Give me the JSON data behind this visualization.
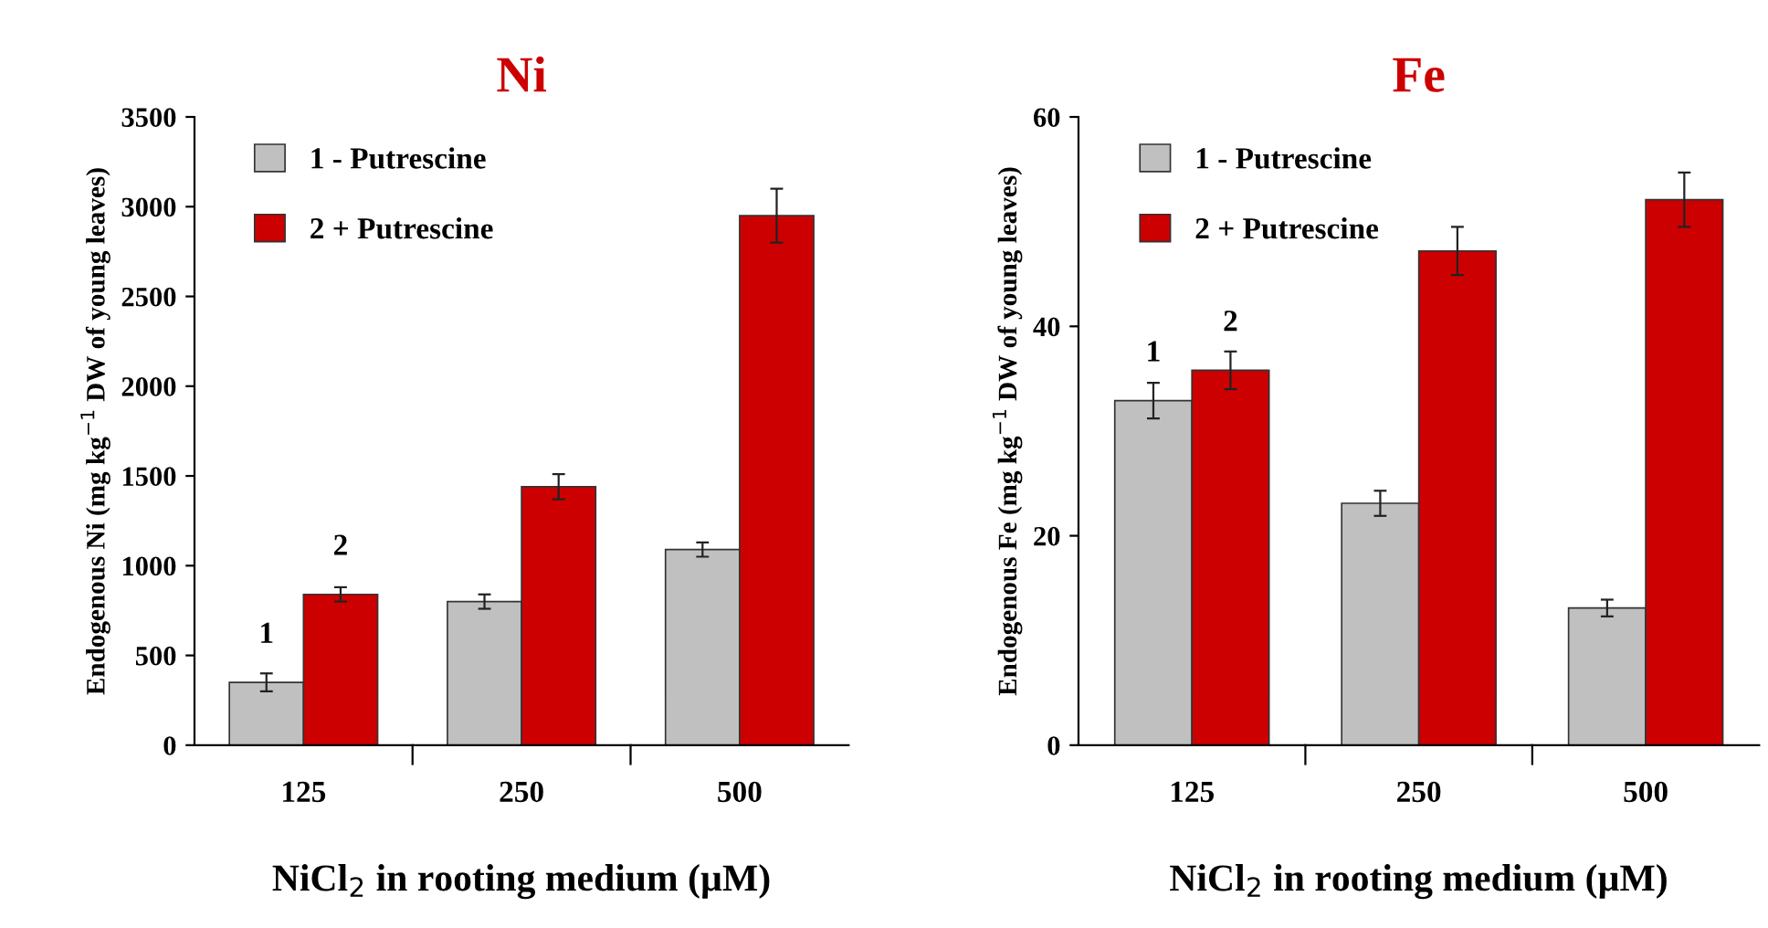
{
  "chart_data": [
    {
      "type": "bar",
      "title": "Ni",
      "xlabel": "NiCl$_{2}$ in rooting medium (µM)",
      "ylabel": "Endogenous Ni (mg kg$^{−1}$ DW of young leaves)",
      "categories": [
        "125",
        "250",
        "500"
      ],
      "series": [
        {
          "name": "1 - Putrescine",
          "color": "#c0c0c0",
          "values": [
            350,
            800,
            1090
          ],
          "errors": [
            50,
            40,
            40
          ]
        },
        {
          "name": "2 + Putrescine",
          "color": "#cc0000",
          "values": [
            840,
            1440,
            2950
          ],
          "errors": [
            40,
            70,
            150
          ]
        }
      ],
      "ylim": [
        0,
        3500
      ],
      "yticks": [
        0,
        500,
        1000,
        1500,
        2000,
        2500,
        3000,
        3500
      ],
      "grid": false,
      "legend": "top left",
      "annotations": [
        {
          "text": "1",
          "x": "125",
          "y": 350
        },
        {
          "text": "2",
          "x": "125",
          "y": 840
        }
      ]
    },
    {
      "type": "bar",
      "title": "Fe",
      "xlabel": "NiCl$_{2}$ in rooting medium (µM)",
      "ylabel": "Endogenous Fe (mg kg$^{−1}$ DW of young leaves)",
      "categories": [
        "125",
        "250",
        "500"
      ],
      "series": [
        {
          "name": "1 - Putrescine",
          "color": "#c0c0c0",
          "values": [
            32.9,
            23.1,
            13.1
          ],
          "errors": [
            1.7,
            1.2,
            0.8
          ]
        },
        {
          "name": "2 + Putrescine",
          "color": "#cc0000",
          "values": [
            35.8,
            47.2,
            52.1
          ],
          "errors": [
            1.8,
            2.3,
            2.6
          ]
        }
      ],
      "ylim": [
        0,
        60
      ],
      "yticks": [
        0,
        20,
        40,
        60
      ],
      "grid": false,
      "legend": "top left",
      "annotations": [
        {
          "text": "1",
          "x": "125",
          "y": 32.9
        },
        {
          "text": "2",
          "x": "125",
          "y": 35.8
        }
      ]
    }
  ]
}
